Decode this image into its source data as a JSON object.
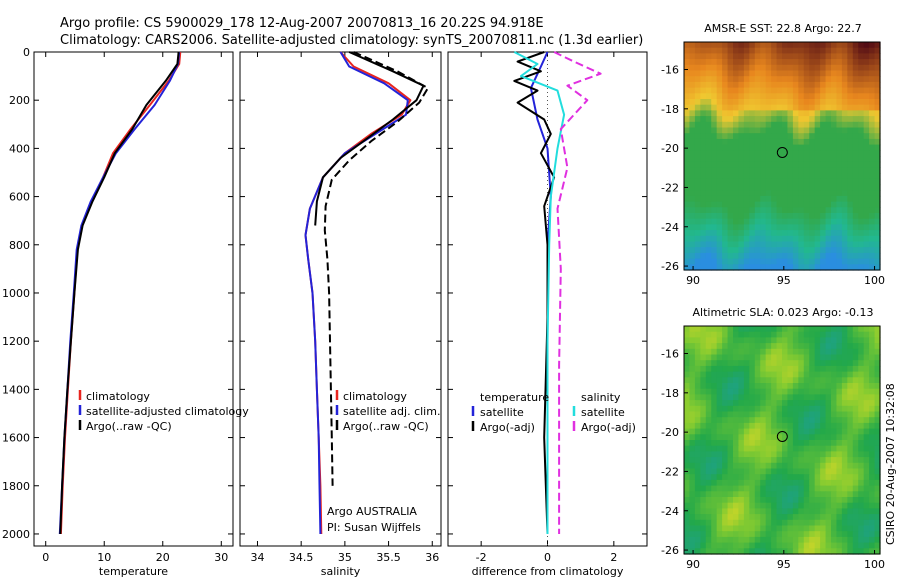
{
  "header": {
    "title_line1": "Argo profile: CS 5900029_178 12-Aug-2007 20070813_16 20.22S 94.918E",
    "title_line2": "Climatology: CARS2006. Satellite-adjusted climatology: synTS_20070811.nc (1.3d earlier)"
  },
  "footer": {
    "credit": "CSIRO 20-Aug-2007 10:32:08",
    "argo_note": "Argo AUSTRALIA",
    "pi_note": "PI: Susan Wijffels"
  },
  "colors": {
    "climatology": "#e8251f",
    "satellite": "#2323d8",
    "argo": "#000000",
    "salinity_satellite": "#22dddd",
    "salinity_argo": "#e030e0"
  },
  "chart_data": [
    {
      "id": "temperature",
      "type": "line",
      "xlabel": "temperature",
      "ylabel": "",
      "xlim": [
        -2,
        32
      ],
      "ylim": [
        2050,
        0
      ],
      "xticks": [
        "0",
        "10",
        "20",
        "30"
      ],
      "yticks": [
        "0",
        "200",
        "400",
        "600",
        "800",
        "1000",
        "1200",
        "1400",
        "1600",
        "1800",
        "2000"
      ],
      "legend": [
        "climatology",
        "satellite-adjusted climatology",
        "Argo(..raw -QC)"
      ],
      "series": [
        {
          "name": "climatology",
          "color": "#e8251f",
          "style": "solid",
          "x": [
            23.0,
            22.8,
            21.0,
            17.8,
            14.5,
            11.5,
            9.8,
            7.8,
            6.2,
            5.4,
            4.9,
            4.3,
            3.8,
            3.3,
            2.9,
            2.6
          ],
          "y": [
            0,
            50,
            120,
            220,
            320,
            420,
            520,
            620,
            720,
            820,
            1000,
            1200,
            1400,
            1600,
            1800,
            2000
          ]
        },
        {
          "name": "satellite-adjusted climatology",
          "color": "#2323d8",
          "style": "solid",
          "x": [
            22.8,
            22.6,
            21.2,
            18.6,
            15.2,
            12.0,
            9.8,
            7.7,
            6.1,
            5.3,
            4.8,
            4.2,
            3.7,
            3.2,
            2.8,
            2.4
          ],
          "y": [
            0,
            50,
            120,
            220,
            320,
            420,
            520,
            620,
            720,
            820,
            1000,
            1200,
            1400,
            1600,
            1800,
            2000
          ]
        },
        {
          "name": "Argo(..raw -QC)",
          "color": "#000000",
          "style": "solid",
          "x": [
            22.7,
            22.5,
            20.5,
            17.2,
            14.8,
            11.8,
            10.0,
            8.0,
            6.3,
            5.5,
            4.9,
            4.3,
            3.7,
            3.2,
            2.8,
            2.5
          ],
          "y": [
            0,
            50,
            120,
            220,
            320,
            420,
            520,
            620,
            720,
            820,
            1000,
            1200,
            1400,
            1600,
            1800,
            2000
          ]
        }
      ]
    },
    {
      "id": "salinity",
      "type": "line",
      "xlabel": "salinity",
      "ylabel": "",
      "xlim": [
        33.8,
        36.1
      ],
      "ylim": [
        2050,
        0
      ],
      "xticks": [
        "34",
        "34.5",
        "35",
        "35.5",
        "36"
      ],
      "legend": [
        "climatology",
        "satellite adj. clim.",
        "Argo(..raw -QC)"
      ],
      "series": [
        {
          "name": "climatology",
          "color": "#e8251f",
          "style": "solid",
          "x": [
            34.95,
            35.1,
            35.5,
            35.75,
            35.65,
            35.3,
            35.0,
            34.75,
            34.6,
            34.55,
            34.58,
            34.63,
            34.66,
            34.68,
            34.7,
            34.72,
            34.73
          ],
          "y": [
            0,
            60,
            130,
            200,
            260,
            340,
            420,
            520,
            650,
            760,
            860,
            1000,
            1200,
            1400,
            1600,
            1800,
            2000
          ]
        },
        {
          "name": "satellite adj. clim.",
          "color": "#2323d8",
          "style": "solid",
          "x": [
            34.95,
            35.05,
            35.45,
            35.72,
            35.7,
            35.35,
            35.0,
            34.75,
            34.6,
            34.55,
            34.58,
            34.63,
            34.66,
            34.68,
            34.7,
            34.71,
            34.72
          ],
          "y": [
            0,
            60,
            130,
            200,
            260,
            340,
            420,
            520,
            650,
            760,
            860,
            1000,
            1200,
            1400,
            1600,
            1800,
            2000
          ]
        },
        {
          "name": "Argo(..raw -QC)",
          "color": "#000000",
          "style": "solid",
          "x": [
            35.05,
            35.55,
            35.9,
            35.82,
            35.55,
            35.25,
            34.95,
            34.75,
            34.68,
            34.66
          ],
          "y": [
            0,
            80,
            140,
            200,
            280,
            360,
            440,
            520,
            620,
            720
          ]
        },
        {
          "name": "Argo(..raw -QC)",
          "color": "#000000",
          "style": "dashed",
          "x": [
            35.1,
            35.6,
            35.95,
            35.85,
            35.6,
            35.3,
            35.05,
            34.85,
            34.78,
            34.77,
            34.8,
            34.82,
            34.83,
            34.84,
            34.85,
            34.86
          ],
          "y": [
            0,
            80,
            150,
            210,
            290,
            370,
            450,
            530,
            640,
            740,
            860,
            1000,
            1200,
            1400,
            1600,
            1800
          ]
        }
      ]
    },
    {
      "id": "difference",
      "type": "line",
      "xlabel": "difference from climatology",
      "ylabel": "",
      "xlim": [
        -3,
        3
      ],
      "ylim": [
        2050,
        0
      ],
      "xticks": [
        "-2",
        "0",
        "2"
      ],
      "legend_temperature_header": "temperature",
      "legend_salinity_header": "salinity",
      "legend": [
        "satellite",
        "Argo(-adj)",
        "satellite",
        "Argo(-adj)"
      ],
      "series": [
        {
          "name": "satellite",
          "group": "temperature",
          "color": "#2323d8",
          "style": "solid",
          "x": [
            0.0,
            -0.2,
            -0.5,
            -0.3,
            0.0,
            0.1,
            0.0,
            0.0,
            0.0,
            0.0,
            0.0
          ],
          "y": [
            0,
            60,
            150,
            280,
            400,
            600,
            800,
            1000,
            1400,
            1800,
            2000
          ]
        },
        {
          "name": "Argo(-adj)",
          "group": "temperature",
          "color": "#000000",
          "style": "solid",
          "x": [
            -0.1,
            -0.9,
            -0.2,
            -1.0,
            -0.3,
            -0.9,
            -0.1,
            0.1,
            -0.2,
            0.2,
            -0.1,
            0.0,
            0.0,
            -0.1,
            0.0
          ],
          "y": [
            0,
            40,
            80,
            120,
            160,
            210,
            280,
            340,
            420,
            520,
            640,
            800,
            1100,
            1600,
            2000
          ]
        },
        {
          "name": "satellite",
          "group": "salinity",
          "color": "#22dddd",
          "style": "solid",
          "x": [
            -1.0,
            -0.3,
            -0.8,
            0.3,
            0.5,
            0.3,
            0.1,
            0.05,
            0.0,
            0.0,
            0.0
          ],
          "y": [
            0,
            50,
            100,
            160,
            260,
            400,
            600,
            800,
            1200,
            1600,
            2000
          ]
        },
        {
          "name": "Argo(-adj)",
          "group": "salinity",
          "color": "#e030e0",
          "style": "dashed",
          "x": [
            0.2,
            0.8,
            1.6,
            0.6,
            1.2,
            0.4,
            0.6,
            0.3,
            0.4,
            0.35,
            0.35,
            0.35
          ],
          "y": [
            0,
            40,
            90,
            140,
            200,
            320,
            480,
            650,
            900,
            1300,
            1700,
            2000
          ]
        }
      ]
    },
    {
      "id": "sst_map",
      "type": "heatmap",
      "title": "AMSR-E SST: 22.8 Argo: 22.7",
      "xlim": [
        89.5,
        100.3
      ],
      "ylim": [
        -26.2,
        -14.6
      ],
      "xticks": [
        "90",
        "95",
        "100"
      ],
      "yticks": [
        "-16",
        "-18",
        "-20",
        "-22",
        "-24",
        "-26"
      ],
      "marker": {
        "lon": 94.918,
        "lat": -20.22
      },
      "description_colors": [
        "#a8521a",
        "#e8871e",
        "#f0c830",
        "#33a84a",
        "#22b88e",
        "#2a8ee0"
      ]
    },
    {
      "id": "sla_map",
      "type": "heatmap",
      "title": "Altimetric SLA: 0.023 Argo: -0.13",
      "xlim": [
        89.5,
        100.3
      ],
      "ylim": [
        -26.2,
        -14.6
      ],
      "xticks": [
        "90",
        "95",
        "100"
      ],
      "yticks": [
        "-16",
        "-18",
        "-20",
        "-22",
        "-24",
        "-26"
      ],
      "marker": {
        "lon": 94.918,
        "lat": -20.22
      },
      "description_colors": [
        "#22a84a",
        "#55bb3c",
        "#88cc30",
        "#c0d42a",
        "#1fa37a"
      ]
    }
  ]
}
